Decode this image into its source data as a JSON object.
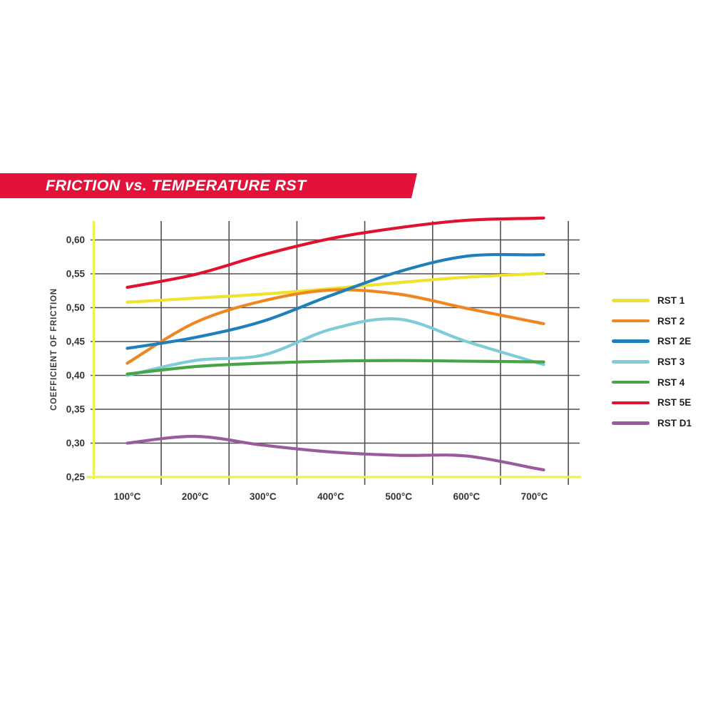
{
  "banner": {
    "title": "FRICTION vs. TEMPERATURE RST",
    "background_color": "#e2123a",
    "text_color": "#ffffff"
  },
  "axes": {
    "axis_line_color": "#eef153",
    "gridline_color": "#4f4f4f",
    "tick_text_color": "#333333"
  },
  "chart_data": {
    "type": "line",
    "title": "FRICTION vs. TEMPERATURE RST",
    "xlabel": "",
    "ylabel": "COEFFICIENT OF FRICTION",
    "categories": [
      100,
      200,
      300,
      400,
      500,
      600,
      700
    ],
    "x_tick_labels": [
      "100°C",
      "200°C",
      "300°C",
      "400°C",
      "500°C",
      "600°C",
      "700°C"
    ],
    "y_ticks": [
      0.25,
      0.3,
      0.35,
      0.4,
      0.45,
      0.5,
      0.55,
      0.6
    ],
    "y_tick_labels": [
      "0,25",
      "0,30",
      "0,35",
      "0,40",
      "0,45",
      "0,50",
      "0,55",
      "0,60"
    ],
    "ylim": [
      0.25,
      0.64
    ],
    "grid": true,
    "legend_position": "right",
    "series": [
      {
        "name": "RST 1",
        "color": "#efe32e",
        "values": [
          0.508,
          0.514,
          0.52,
          0.528,
          0.537,
          0.545,
          0.55
        ]
      },
      {
        "name": "RST 2",
        "color": "#ee8722",
        "values": [
          0.418,
          0.478,
          0.51,
          0.526,
          0.52,
          0.499,
          0.479
        ]
      },
      {
        "name": "RST 2E",
        "color": "#1e7fba",
        "values": [
          0.44,
          0.456,
          0.48,
          0.518,
          0.553,
          0.576,
          0.578
        ]
      },
      {
        "name": "RST 3",
        "color": "#7fccd9",
        "values": [
          0.4,
          0.422,
          0.43,
          0.468,
          0.483,
          0.45,
          0.42
        ]
      },
      {
        "name": "RST 4",
        "color": "#48a447",
        "values": [
          0.402,
          0.413,
          0.418,
          0.421,
          0.422,
          0.421,
          0.42
        ]
      },
      {
        "name": "RST 5E",
        "color": "#e0122f",
        "values": [
          0.53,
          0.549,
          0.578,
          0.602,
          0.618,
          0.629,
          0.632
        ]
      },
      {
        "name": "RST D1",
        "color": "#9a5b9d",
        "values": [
          0.3,
          0.31,
          0.297,
          0.287,
          0.282,
          0.281,
          0.263
        ]
      }
    ]
  }
}
